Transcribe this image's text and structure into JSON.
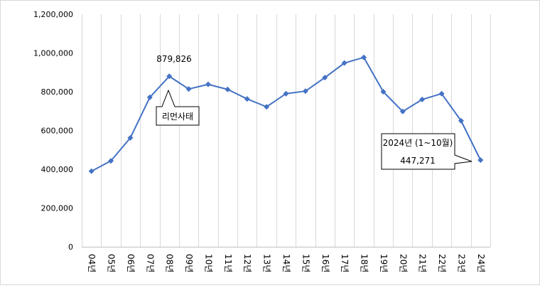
{
  "chart_data": {
    "type": "line",
    "title": "",
    "xlabel": "",
    "ylabel": "",
    "ylim": [
      0,
      1200000
    ],
    "yticks": [
      0,
      200000,
      400000,
      600000,
      800000,
      1000000,
      1200000
    ],
    "ytick_labels": [
      "0",
      "200,000",
      "400,000",
      "600,000",
      "800,000",
      "1,000,000",
      "1,200,000"
    ],
    "categories": [
      "04년",
      "05년",
      "06년",
      "07년",
      "08년",
      "09년",
      "10년",
      "11년",
      "12년",
      "13년",
      "14년",
      "15년",
      "16년",
      "17년",
      "18년",
      "19년",
      "20년",
      "21년",
      "22년",
      "23년",
      "24년"
    ],
    "series": [
      {
        "values": [
          390000,
          443000,
          562000,
          771000,
          879826,
          814000,
          838000,
          812000,
          763000,
          722000,
          790000,
          803000,
          873000,
          948000,
          977000,
          800000,
          698000,
          760000,
          790000,
          650000,
          447271
        ]
      }
    ],
    "grid": "vertical",
    "line_color": "#4472C4",
    "annotations": {
      "peak_label": "879,826",
      "callout_lehman": "리먼사태",
      "callout_2024_line1": "2024년 (1~10월)",
      "callout_2024_line2": "447,271"
    }
  }
}
